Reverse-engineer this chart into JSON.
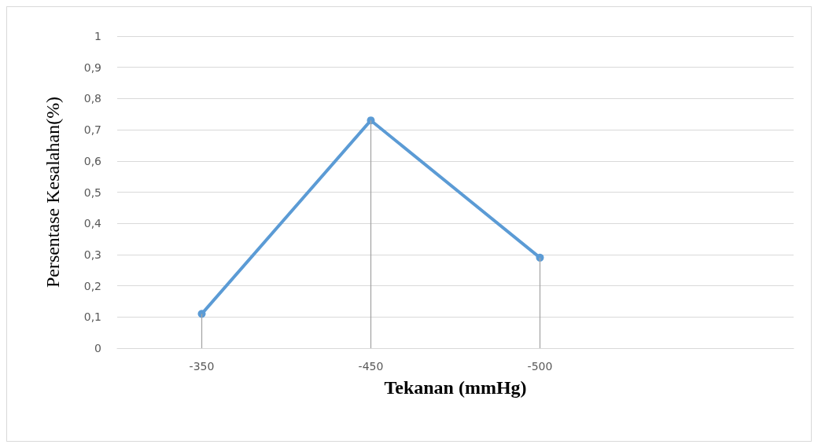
{
  "chart_data": {
    "type": "line",
    "xlabel": "Tekanan (mmHg)",
    "ylabel": "Persentase Kesalahan(%)",
    "categories": [
      "-350",
      "-450",
      "-500",
      null
    ],
    "series": [
      {
        "color": "#5b9bd5",
        "values": [
          0.11,
          0.73,
          0.29,
          null
        ]
      },
      {
        "type": "bar",
        "color": "#a6a6a6",
        "values": [
          0.11,
          0.73,
          0.29,
          null
        ]
      }
    ],
    "ylim": [
      0,
      1
    ],
    "yticks": [
      0,
      {
        "value": 0.1,
        "label": "0,1"
      },
      {
        "value": 0.2,
        "label": "0,2"
      },
      {
        "value": 0.3,
        "label": "0,3"
      },
      {
        "value": 0.4,
        "label": "0,4"
      },
      {
        "value": 0.5,
        "label": "0,5"
      },
      {
        "value": 0.6,
        "label": "0,6"
      },
      {
        "value": 0.7,
        "label": "0,7"
      },
      {
        "value": 0.8,
        "label": "0,8"
      },
      {
        "value": 0.9,
        "label": "0,9"
      },
      1
    ],
    "grid": "y",
    "marker": "circle",
    "line_style": "solid"
  }
}
